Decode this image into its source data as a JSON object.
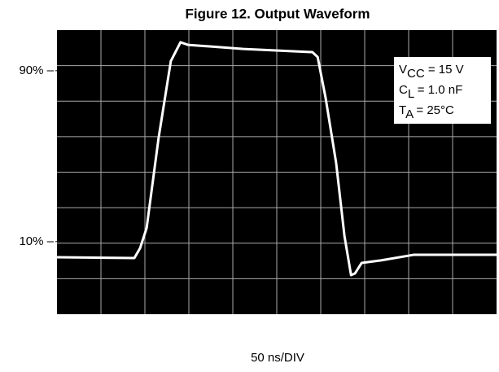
{
  "chart_data": {
    "type": "line",
    "title": "Figure 12. Output Waveform",
    "xlabel": "50 ns/DIV",
    "x": [
      0,
      1.76,
      1.89,
      2.04,
      2.31,
      2.59,
      2.81,
      2.98,
      4.24,
      5.81,
      5.93,
      6.11,
      6.35,
      6.54,
      6.69,
      6.78,
      6.93,
      7.37,
      8.11,
      9.04,
      10
    ],
    "series": [
      {
        "color": "#ffffff",
        "values": [
          2.7,
          2.3,
          6.9,
          16.4,
          58.3,
          94.5,
          103.3,
          102.1,
          100.2,
          98.7,
          96.4,
          77.4,
          46.9,
          12.6,
          -5.7,
          -4.9,
          0.0,
          1.2,
          3.8,
          3.8,
          3.8
        ]
      }
    ],
    "xlim": [
      0,
      10
    ],
    "ylim": [
      -24,
      109
    ],
    "yticks": [
      {
        "value": 90,
        "label": "90% –"
      },
      {
        "value": 10,
        "label": "10% –"
      }
    ],
    "grid": true,
    "background": "#000000",
    "annotation": [
      {
        "base": "V",
        "sub": "CC",
        "rest": " = 15 V"
      },
      {
        "base": "C",
        "sub": "L",
        "rest": " = 1.0 nF"
      },
      {
        "base": "T",
        "sub": "A",
        "rest": " = 25°C"
      }
    ]
  }
}
